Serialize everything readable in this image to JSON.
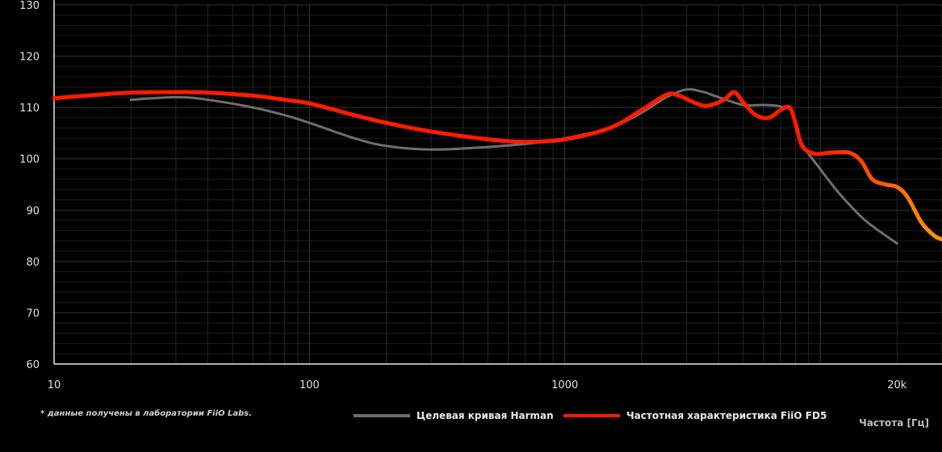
{
  "chart_data": {
    "type": "line",
    "x_scale": "log",
    "xlim": [
      10,
      30000
    ],
    "ylim": [
      60,
      130
    ],
    "x_ticks": [
      {
        "value": 10,
        "label": "10"
      },
      {
        "value": 100,
        "label": "100"
      },
      {
        "value": 1000,
        "label": "1000"
      },
      {
        "value": 20000,
        "label": "20k"
      }
    ],
    "y_ticks": [
      60,
      70,
      80,
      90,
      100,
      110,
      120,
      130
    ],
    "grid": true,
    "xlabel": "Частота [Гц]",
    "ylabel": "",
    "legend_position": "bottom",
    "footnote": "* данные получены в лаборатории FiiO Labs.",
    "series": [
      {
        "name": "Целевая кривая Harman",
        "color": "#6e6e6e",
        "points": [
          [
            20,
            111.5
          ],
          [
            30,
            112
          ],
          [
            40,
            111.5
          ],
          [
            60,
            110
          ],
          [
            80,
            108.5
          ],
          [
            100,
            107
          ],
          [
            150,
            104
          ],
          [
            200,
            102.5
          ],
          [
            300,
            101.8
          ],
          [
            500,
            102.3
          ],
          [
            800,
            103.2
          ],
          [
            1000,
            104
          ],
          [
            1500,
            106
          ],
          [
            2000,
            109
          ],
          [
            2500,
            112
          ],
          [
            3000,
            113.5
          ],
          [
            3500,
            113
          ],
          [
            4000,
            112
          ],
          [
            5000,
            110.5
          ],
          [
            6000,
            110.5
          ],
          [
            7000,
            110.2
          ],
          [
            7800,
            109
          ],
          [
            8500,
            103
          ],
          [
            10000,
            98
          ],
          [
            12000,
            93
          ],
          [
            15000,
            88
          ],
          [
            20000,
            83.5
          ]
        ]
      },
      {
        "name": "Частотная характеристика FiiO FD5",
        "color": "#ff1a00",
        "color_end": "#ff9a00",
        "points": [
          [
            10,
            111.8
          ],
          [
            15,
            112.5
          ],
          [
            20,
            112.9
          ],
          [
            30,
            113
          ],
          [
            40,
            112.9
          ],
          [
            60,
            112.3
          ],
          [
            80,
            111.5
          ],
          [
            100,
            110.8
          ],
          [
            150,
            108.5
          ],
          [
            200,
            107
          ],
          [
            300,
            105.3
          ],
          [
            500,
            103.8
          ],
          [
            700,
            103.3
          ],
          [
            1000,
            103.8
          ],
          [
            1500,
            106
          ],
          [
            2000,
            109.5
          ],
          [
            2500,
            112.5
          ],
          [
            2800,
            112.3
          ],
          [
            3200,
            111
          ],
          [
            3600,
            110.3
          ],
          [
            4200,
            111.5
          ],
          [
            4600,
            113
          ],
          [
            5000,
            111
          ],
          [
            5600,
            108.5
          ],
          [
            6300,
            108
          ],
          [
            7000,
            109.5
          ],
          [
            7600,
            110
          ],
          [
            8000,
            107
          ],
          [
            8500,
            102.5
          ],
          [
            9500,
            101
          ],
          [
            11000,
            101.2
          ],
          [
            13000,
            101.2
          ],
          [
            14500,
            99.5
          ],
          [
            16000,
            96
          ],
          [
            18000,
            95
          ],
          [
            20000,
            94.5
          ],
          [
            22000,
            92.5
          ],
          [
            25000,
            87.5
          ],
          [
            28000,
            85
          ],
          [
            30000,
            84.3
          ]
        ]
      }
    ]
  }
}
